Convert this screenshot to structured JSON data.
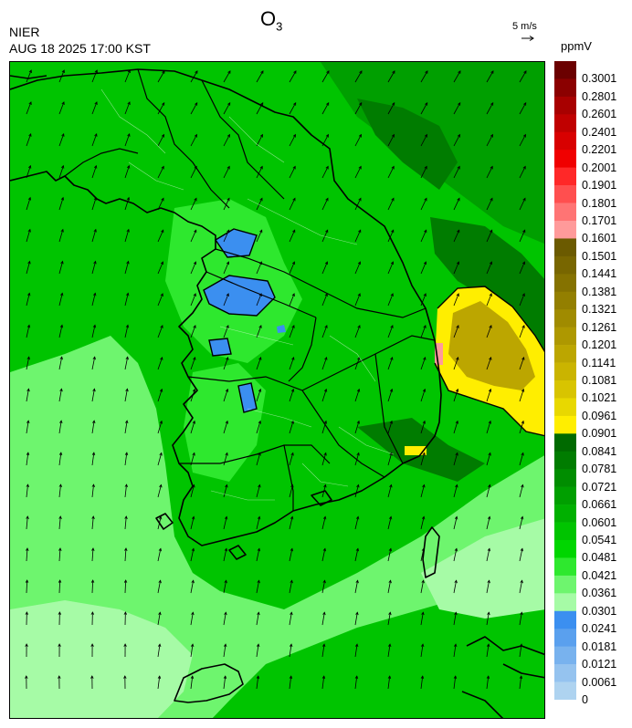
{
  "header": {
    "agency": "NIER",
    "datetime": "AUG 18 2025 17:00 KST",
    "species_main": "O",
    "species_sub": "3",
    "reference_vector": "5 m/s",
    "unit": "ppmV"
  },
  "legend": {
    "labels": [
      "0.3001",
      "0.2801",
      "0.2601",
      "0.2401",
      "0.2201",
      "0.2001",
      "0.1901",
      "0.1801",
      "0.1701",
      "0.1601",
      "0.1501",
      "0.1441",
      "0.1381",
      "0.1321",
      "0.1261",
      "0.1201",
      "0.1141",
      "0.1081",
      "0.1021",
      "0.0961",
      "0.0901",
      "0.0841",
      "0.0781",
      "0.0721",
      "0.0661",
      "0.0601",
      "0.0541",
      "0.0481",
      "0.0421",
      "0.0361",
      "0.0301",
      "0.0241",
      "0.0181",
      "0.0121",
      "0.0061",
      "0"
    ],
    "colors": [
      "#6b0000",
      "#8b0000",
      "#a80000",
      "#c00000",
      "#d80000",
      "#f00000",
      "#ff2828",
      "#ff4f4f",
      "#ff7474",
      "#ff9a9a",
      "#6b5a00",
      "#786600",
      "#857200",
      "#937f00",
      "#a08b00",
      "#ae9800",
      "#bca600",
      "#cab400",
      "#d8c400",
      "#e8d800",
      "#ffee00",
      "#006a00",
      "#007c00",
      "#008d00",
      "#009f00",
      "#00b000",
      "#00c400",
      "#00d600",
      "#2ee82e",
      "#6ef56e",
      "#a6fba6",
      "#3b8ff0",
      "#5aa0ee",
      "#78b2ee",
      "#95c3ef",
      "#aed3f0"
    ]
  },
  "map": {
    "field_colors": {
      "green_mid": "#00c400",
      "green_light": "#2ee82e",
      "green_pale": "#6ef56e",
      "green_very_pale": "#a6fba6",
      "green_dark": "#009f00",
      "green_darker": "#007c00",
      "blue_low": "#3b8ff0",
      "yellow_high": "#ffee00",
      "olive_high": "#bca600",
      "pink_peak": "#ff9a9a"
    }
  }
}
